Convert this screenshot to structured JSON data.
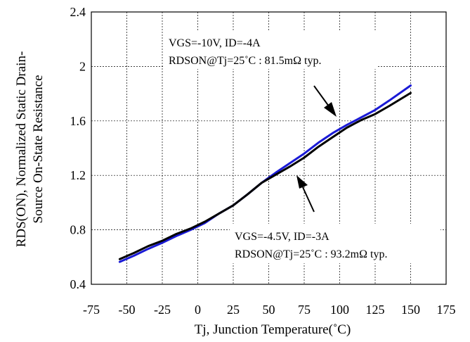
{
  "chart_data": {
    "type": "line",
    "xlabel": "Tj, Junction Temperature(˚C)",
    "ylabel_lines": [
      "RDS(ON), Normalized Static Drain-",
      "Source On-State Resistance"
    ],
    "xlim": [
      -75,
      175
    ],
    "ylim": [
      0.4,
      2.4
    ],
    "x_ticks": [
      "-75",
      "-50",
      "-25",
      "0",
      "25",
      "50",
      "75",
      "100",
      "125",
      "150",
      "175"
    ],
    "y_ticks": [
      "0.4",
      "0.8",
      "1.2",
      "1.6",
      "2",
      "2.4"
    ],
    "x_tick_values": [
      -75,
      -50,
      -25,
      0,
      25,
      50,
      75,
      100,
      125,
      150,
      175
    ],
    "y_tick_values": [
      0.4,
      0.8,
      1.2,
      1.6,
      2.0,
      2.4
    ],
    "grid": true,
    "series": [
      {
        "color": "#1a1ad6",
        "x": [
          -55,
          -45,
          -35,
          -25,
          -15,
          -5,
          5,
          15,
          25,
          35,
          45,
          55,
          65,
          75,
          85,
          95,
          105,
          115,
          125,
          135,
          150
        ],
        "y": [
          0.565,
          0.61,
          0.66,
          0.705,
          0.755,
          0.8,
          0.85,
          0.92,
          0.98,
          1.06,
          1.145,
          1.22,
          1.29,
          1.36,
          1.44,
          1.51,
          1.57,
          1.625,
          1.68,
          1.75,
          1.86
        ]
      },
      {
        "color": "#000000",
        "x": [
          -55,
          -45,
          -35,
          -25,
          -15,
          -5,
          5,
          15,
          25,
          35,
          45,
          55,
          65,
          75,
          85,
          95,
          105,
          115,
          125,
          135,
          150
        ],
        "y": [
          0.585,
          0.63,
          0.68,
          0.72,
          0.77,
          0.81,
          0.86,
          0.92,
          0.98,
          1.06,
          1.145,
          1.205,
          1.265,
          1.33,
          1.41,
          1.48,
          1.55,
          1.605,
          1.65,
          1.71,
          1.805
        ]
      }
    ],
    "annotations": [
      {
        "line1": "VGS=-10V, ID=-4A",
        "line2": "RDSON@Tj=25˚C : 81.5mΩ typ."
      },
      {
        "line1": "VGS=-4.5V, ID=-3A",
        "line2": "RDSON@Tj=25˚C : 93.2mΩ typ."
      }
    ]
  }
}
